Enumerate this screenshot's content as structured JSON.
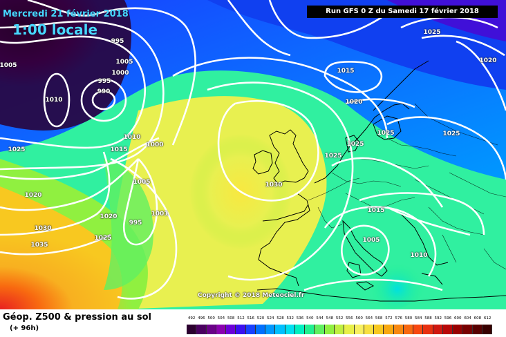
{
  "map": {
    "valid_date": "Mercredi 21 février 2018",
    "local_time": "1:00 locale",
    "run_info": "Run GFS 0 Z du Samedi 17 février 2018",
    "copyright": "Copyright © 2018 Meteociel.fr",
    "isobar_labels": [
      {
        "id": "iso-995-a",
        "text": "995"
      },
      {
        "id": "iso-1005-nw",
        "text": "1005"
      },
      {
        "id": "iso-1005-b",
        "text": "1005"
      },
      {
        "id": "iso-1000-a",
        "text": "1000"
      },
      {
        "id": "iso-995-b",
        "text": "995"
      },
      {
        "id": "iso-990",
        "text": "990"
      },
      {
        "id": "iso-1010-nw",
        "text": "1010"
      },
      {
        "id": "iso-1010-mid",
        "text": "1010"
      },
      {
        "id": "iso-1000-mid",
        "text": "1000"
      },
      {
        "id": "iso-1015-w",
        "text": "1015"
      },
      {
        "id": "iso-1025-w",
        "text": "1025"
      },
      {
        "id": "iso-1005-mid",
        "text": "1005"
      },
      {
        "id": "iso-1020-w",
        "text": "1020"
      },
      {
        "id": "iso-1020-mid",
        "text": "1020"
      },
      {
        "id": "iso-995-low",
        "text": "995"
      },
      {
        "id": "iso-1001",
        "text": "1001"
      },
      {
        "id": "iso-1030-w",
        "text": "1030"
      },
      {
        "id": "iso-1035",
        "text": "1035"
      },
      {
        "id": "iso-1025-sw",
        "text": "1025"
      },
      {
        "id": "iso-1030-uk",
        "text": "1030"
      },
      {
        "id": "iso-1025-ne",
        "text": "1025"
      },
      {
        "id": "iso-1015-n",
        "text": "1015"
      },
      {
        "id": "iso-1020-n",
        "text": "1020"
      },
      {
        "id": "iso-1025-nl",
        "text": "1025"
      },
      {
        "id": "iso-1025-dk",
        "text": "1025"
      },
      {
        "id": "iso-1025-de",
        "text": "1025"
      },
      {
        "id": "iso-1020-ru",
        "text": "1020"
      },
      {
        "id": "iso-1025-ru",
        "text": "1025"
      },
      {
        "id": "iso-1015-alps",
        "text": "1015"
      },
      {
        "id": "iso-1005-it",
        "text": "1005"
      },
      {
        "id": "iso-1010-gr",
        "text": "1010"
      }
    ]
  },
  "footer": {
    "title": "Géop. Z500 & pression au sol",
    "subtitle": "(+ 96h)"
  },
  "legend": {
    "labels": [
      "492",
      "496",
      "500",
      "504",
      "508",
      "512",
      "516",
      "520",
      "524",
      "528",
      "532",
      "536",
      "540",
      "544",
      "548",
      "552",
      "556",
      "560",
      "564",
      "568",
      "572",
      "576",
      "580",
      "584",
      "588",
      "592",
      "596",
      "600",
      "604",
      "608",
      "612"
    ],
    "colors": [
      "#2c0030",
      "#4a0060",
      "#6a0088",
      "#8a00b0",
      "#6a00d8",
      "#3a10f0",
      "#1840ff",
      "#0070ff",
      "#0098ff",
      "#00c0ff",
      "#00e0f0",
      "#00f0c0",
      "#20f090",
      "#60f060",
      "#90f040",
      "#c0f040",
      "#e8f048",
      "#f8f060",
      "#f8e040",
      "#f8c820",
      "#f8a810",
      "#f88810",
      "#f86810",
      "#f84810",
      "#e83010",
      "#d01810",
      "#b80808",
      "#980000",
      "#780000",
      "#580000",
      "#380000"
    ]
  }
}
